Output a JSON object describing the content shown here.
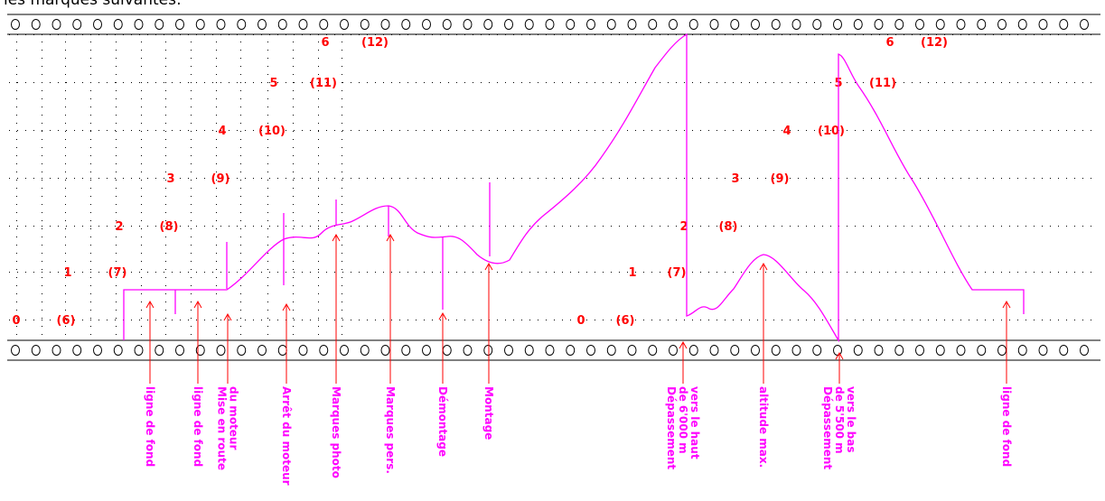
{
  "header_text": "les marques suivantes:",
  "colors": {
    "trace": "#ff00ff",
    "scale_labels": "#ff0000",
    "pointer_arrows": "#ff0000",
    "grid_dots": "#000000",
    "film_border": "#000000"
  },
  "scale_sets": [
    {
      "id": "left",
      "labels": [
        "0",
        "1",
        "2",
        "3",
        "4",
        "5",
        "6"
      ],
      "alt_labels": [
        "(6)",
        "(7)",
        "(8)",
        "(9)",
        "(10)",
        "(11)",
        "(12)"
      ]
    },
    {
      "id": "middle",
      "labels": [
        "0",
        "1",
        "2",
        "3",
        "4",
        "5",
        "6"
      ],
      "alt_labels": [
        "(6)",
        "(7)",
        "(8)",
        "(9)",
        "(10)",
        "(11)",
        "(12)"
      ]
    }
  ],
  "annotations": [
    {
      "id": "baseline-1",
      "lines": [
        "ligne de fond"
      ]
    },
    {
      "id": "baseline-2",
      "lines": [
        "ligne de fond"
      ]
    },
    {
      "id": "engine-start",
      "lines": [
        "Mise en route",
        "du moteur"
      ]
    },
    {
      "id": "engine-stop",
      "lines": [
        "Arrêt du moteur"
      ]
    },
    {
      "id": "photo-marks",
      "lines": [
        "Marques photo"
      ]
    },
    {
      "id": "personal-marks",
      "lines": [
        "Marques pers."
      ]
    },
    {
      "id": "disassembly",
      "lines": [
        "Démontage"
      ]
    },
    {
      "id": "assembly",
      "lines": [
        "Montage"
      ]
    },
    {
      "id": "exceed-6000-up",
      "lines": [
        "Dépassement",
        "de 6'000 m",
        "vers le haut"
      ]
    },
    {
      "id": "max-altitude",
      "lines": [
        "altitude max."
      ]
    },
    {
      "id": "exceed-5500-down",
      "lines": [
        "Dépassement",
        "de 5'500 m",
        "vers le bas"
      ]
    },
    {
      "id": "baseline-3",
      "lines": [
        "ligne de fond"
      ]
    }
  ]
}
